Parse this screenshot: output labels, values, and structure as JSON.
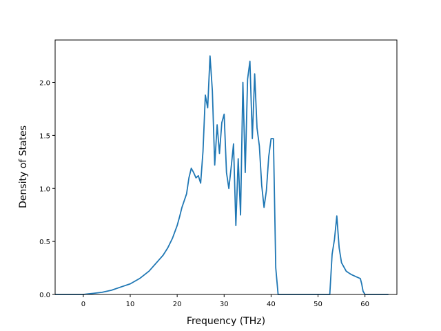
{
  "chart_data": {
    "type": "line",
    "title": "",
    "xlabel": "Frequency (THz)",
    "ylabel": "Density of States",
    "xlim": [
      -6.0,
      66.8
    ],
    "ylim": [
      0.0,
      2.4
    ],
    "xticks": [
      0,
      10,
      20,
      30,
      40,
      50,
      60
    ],
    "yticks": [
      0.0,
      0.5,
      1.0,
      1.5,
      2.0
    ],
    "xtick_labels": [
      "0",
      "10",
      "20",
      "30",
      "40",
      "50",
      "60"
    ],
    "ytick_labels": [
      "0.0",
      "0.5",
      "1.0",
      "1.5",
      "2.0"
    ],
    "grid": false,
    "legend": "none",
    "series": [
      {
        "color": "#1f77b4",
        "x": [
          -6,
          -2,
          0,
          2,
          4,
          6,
          8,
          10,
          12,
          14,
          16,
          17,
          18,
          19,
          20,
          20.5,
          21,
          22,
          22.5,
          23,
          23.5,
          24,
          24.5,
          25,
          25.5,
          26,
          26.5,
          27,
          27.5,
          28,
          28.5,
          29,
          29.5,
          30,
          30.5,
          31,
          31.5,
          32,
          32.5,
          33,
          33.5,
          34,
          34.5,
          35,
          35.5,
          36,
          36.5,
          37,
          37.5,
          38,
          38.5,
          39,
          39.5,
          40,
          40.5,
          41,
          41.5,
          42,
          42.5,
          43,
          52.5,
          53,
          53.5,
          54,
          54.5,
          55,
          56,
          57,
          58,
          59,
          59.3,
          59.6,
          60,
          65
        ],
        "y": [
          0.0,
          0.0,
          0.0,
          0.01,
          0.02,
          0.04,
          0.07,
          0.1,
          0.15,
          0.22,
          0.32,
          0.37,
          0.44,
          0.53,
          0.65,
          0.73,
          0.82,
          0.95,
          1.1,
          1.19,
          1.15,
          1.1,
          1.12,
          1.05,
          1.35,
          1.88,
          1.76,
          2.25,
          1.92,
          1.22,
          1.6,
          1.33,
          1.62,
          1.7,
          1.15,
          1.0,
          1.2,
          1.42,
          0.65,
          1.28,
          0.75,
          2.0,
          1.15,
          2.03,
          2.2,
          1.47,
          2.08,
          1.57,
          1.4,
          1.03,
          0.82,
          0.98,
          1.3,
          1.47,
          1.47,
          0.25,
          0.0,
          0.0,
          0.0,
          0.0,
          0.0,
          0.38,
          0.52,
          0.74,
          0.44,
          0.3,
          0.22,
          0.19,
          0.17,
          0.15,
          0.1,
          0.03,
          0.0,
          0.0
        ]
      }
    ]
  }
}
